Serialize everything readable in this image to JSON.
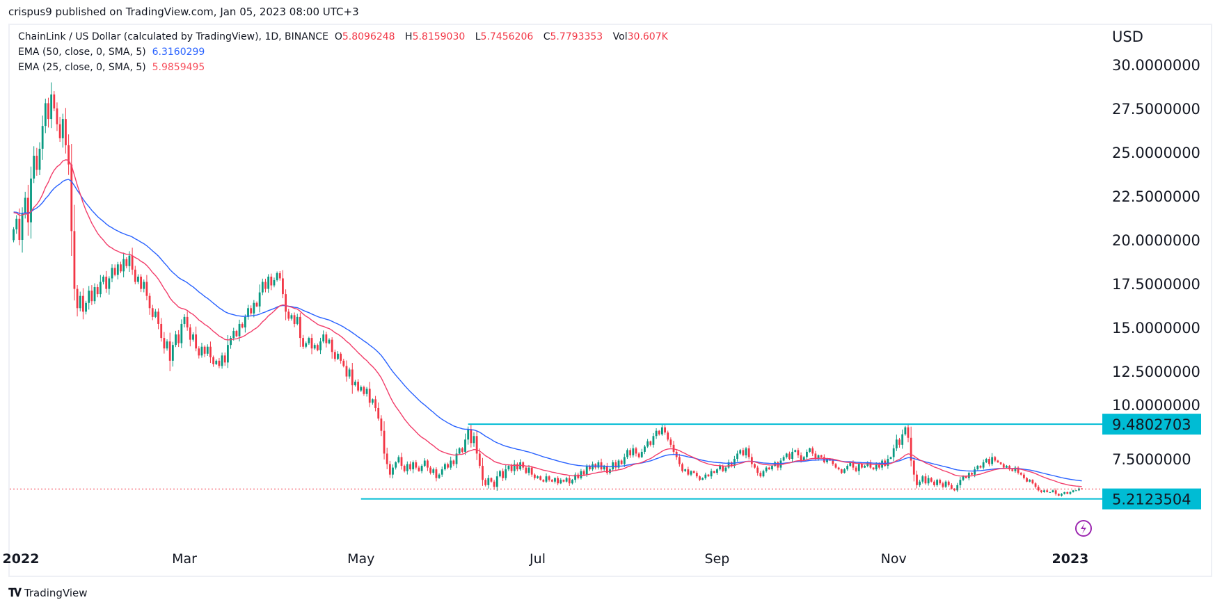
{
  "header": {
    "published": "crispus9 published on TradingView.com, Jan 05, 2023 08:00 UTC+3"
  },
  "legend": {
    "symbol": "ChainLink / US Dollar (calculated by TradingView), 1D, BINANCE",
    "o_label": "O",
    "o": "5.8096248",
    "h_label": "H",
    "h": "5.8159030",
    "l_label": "L",
    "l": "5.7456206",
    "c_label": "C",
    "c": "5.7793353",
    "vol_label": "Vol",
    "vol": "30.607K",
    "ema50_label": "EMA (50, close, 0, SMA, 5)",
    "ema50": "6.3160299",
    "ema25_label": "EMA (25, close, 0, SMA, 5)",
    "ema25": "5.9859495"
  },
  "footer": {
    "brand": "TradingView"
  },
  "colors": {
    "up": "#089981",
    "down": "#f23645",
    "ema50": "#2962ff",
    "ema25": "#f23d6a",
    "level": "#00bcd4",
    "last_price": "#f23645",
    "event_icon": "#9c27b0"
  },
  "icons": {
    "event": "lightning-bolt-icon",
    "brand": "tradingview-logo-icon"
  },
  "chart_data": {
    "type": "candlestick",
    "interval": "1D",
    "start_date": "2022-01-01",
    "end_date": "2023-01-05",
    "currency_label": "USD",
    "ylim": [
      4.5,
      31
    ],
    "y_ticks": [
      "7.5000000",
      "10.0000000",
      "12.5000000",
      "15.0000000",
      "17.5000000",
      "20.0000000",
      "22.5000000",
      "25.0000000",
      "27.5000000",
      "30.0000000"
    ],
    "x_ticks": [
      {
        "label": "2022",
        "date": "2022-01-01",
        "bold": true
      },
      {
        "label": "Mar",
        "date": "2022-03-01"
      },
      {
        "label": "May",
        "date": "2022-05-01"
      },
      {
        "label": "Jul",
        "date": "2022-07-01"
      },
      {
        "label": "Sep",
        "date": "2022-09-01"
      },
      {
        "label": "Nov",
        "date": "2022-11-01"
      },
      {
        "label": "2023",
        "date": "2023-01-01",
        "bold": true
      }
    ],
    "levels": [
      {
        "label": "9.4802703",
        "value": 9.4802703,
        "from": "2022-06-07"
      },
      {
        "label": "5.2123504",
        "value": 5.2123504,
        "from": "2022-05-01"
      }
    ],
    "last_price": 5.7793353,
    "closes": [
      20.6,
      21.2,
      20.0,
      21.5,
      22.4,
      21.0,
      23.5,
      24.8,
      24.0,
      25.2,
      26.5,
      27.8,
      26.9,
      28.3,
      27.5,
      26.6,
      25.8,
      26.9,
      25.4,
      24.3,
      20.5,
      17.2,
      16.1,
      16.8,
      15.9,
      16.4,
      17.1,
      16.5,
      17.3,
      16.9,
      17.6,
      17.9,
      17.2,
      17.8,
      18.4,
      18.0,
      18.6,
      18.2,
      18.9,
      18.5,
      19.1,
      18.3,
      17.6,
      17.9,
      17.2,
      17.6,
      16.8,
      16.1,
      15.6,
      15.9,
      15.2,
      14.4,
      13.8,
      14.2,
      13.1,
      14.0,
      14.6,
      14.1,
      15.2,
      15.6,
      15.0,
      14.3,
      14.6,
      13.8,
      13.4,
      13.9,
      13.5,
      13.9,
      13.3,
      12.9,
      13.1,
      12.8,
      13.4,
      13.0,
      14.0,
      14.4,
      14.8,
      14.5,
      15.2,
      15.0,
      15.6,
      16.1,
      15.8,
      16.4,
      16.2,
      17.0,
      17.6,
      17.2,
      17.9,
      17.4,
      17.7,
      18.1,
      17.8,
      16.9,
      15.9,
      15.5,
      15.7,
      15.2,
      15.6,
      14.4,
      13.9,
      14.1,
      14.4,
      13.8,
      14.0,
      13.7,
      14.2,
      14.6,
      14.1,
      14.3,
      13.6,
      13.2,
      13.5,
      13.1,
      12.8,
      12.2,
      12.6,
      11.7,
      11.9,
      11.4,
      11.6,
      11.2,
      11.5,
      10.7,
      10.9,
      10.4,
      9.8,
      9.1,
      7.8,
      7.2,
      6.6,
      7.0,
      7.3,
      7.6,
      7.1,
      6.8,
      7.2,
      6.9,
      7.3,
      7.0,
      6.8,
      7.1,
      7.4,
      7.0,
      6.7,
      6.9,
      6.4,
      6.6,
      6.9,
      7.2,
      7.0,
      7.4,
      7.2,
      7.8,
      8.1,
      7.9,
      8.6,
      9.2,
      8.4,
      8.8,
      7.8,
      7.1,
      6.3,
      6.0,
      6.4,
      6.2,
      5.9,
      6.5,
      6.8,
      6.4,
      6.9,
      7.1,
      6.8,
      7.2,
      6.9,
      7.3,
      7.0,
      6.7,
      7.0,
      6.6,
      6.4,
      6.5,
      6.3,
      6.2,
      6.5,
      6.3,
      6.2,
      6.4,
      6.1,
      6.3,
      6.2,
      6.4,
      6.1,
      6.3,
      6.6,
      6.4,
      6.8,
      6.6,
      7.1,
      6.9,
      7.2,
      7.0,
      7.3,
      6.9,
      7.1,
      6.7,
      6.9,
      7.3,
      7.0,
      7.4,
      7.2,
      7.6,
      8.0,
      7.7,
      8.1,
      7.8,
      7.6,
      7.9,
      8.2,
      8.5,
      8.3,
      8.8,
      9.1,
      8.9,
      9.3,
      9.0,
      8.6,
      8.3,
      7.9,
      7.6,
      7.2,
      6.8,
      6.9,
      6.6,
      6.8,
      6.7,
      6.5,
      6.3,
      6.4,
      6.6,
      6.5,
      6.8,
      6.7,
      6.9,
      7.1,
      6.8,
      7.0,
      7.3,
      7.1,
      7.5,
      7.8,
      8.0,
      7.7,
      8.1,
      7.6,
      7.2,
      7.0,
      6.7,
      6.5,
      6.8,
      7.0,
      6.9,
      7.1,
      7.3,
      7.0,
      7.4,
      7.6,
      7.8,
      7.5,
      7.9,
      8.0,
      7.7,
      7.4,
      7.6,
      7.9,
      8.1,
      7.8,
      7.5,
      7.7,
      7.6,
      7.3,
      7.5,
      7.4,
      7.2,
      7.0,
      6.9,
      6.7,
      6.9,
      7.1,
      7.3,
      7.0,
      6.8,
      7.2,
      7.0,
      7.1,
      7.3,
      7.0,
      6.9,
      7.2,
      7.0,
      7.4,
      7.1,
      7.5,
      7.6,
      8.1,
      8.6,
      8.3,
      8.9,
      9.3,
      8.7,
      7.4,
      6.6,
      6.0,
      6.2,
      6.5,
      6.1,
      6.4,
      6.2,
      6.0,
      6.3,
      6.1,
      5.9,
      6.2,
      6.0,
      5.8,
      5.7,
      6.0,
      6.3,
      6.5,
      6.4,
      6.7,
      6.6,
      6.9,
      7.1,
      7.0,
      7.3,
      7.5,
      7.2,
      7.6,
      7.4,
      7.3,
      7.2,
      7.0,
      7.1,
      6.9,
      6.8,
      7.0,
      6.7,
      6.6,
      6.4,
      6.2,
      6.3,
      6.1,
      5.9,
      5.7,
      5.6,
      5.7,
      5.6,
      5.6,
      5.7,
      5.5,
      5.4,
      5.5,
      5.6,
      5.5,
      5.6,
      5.7,
      5.7,
      5.8096248,
      5.7793353
    ]
  }
}
